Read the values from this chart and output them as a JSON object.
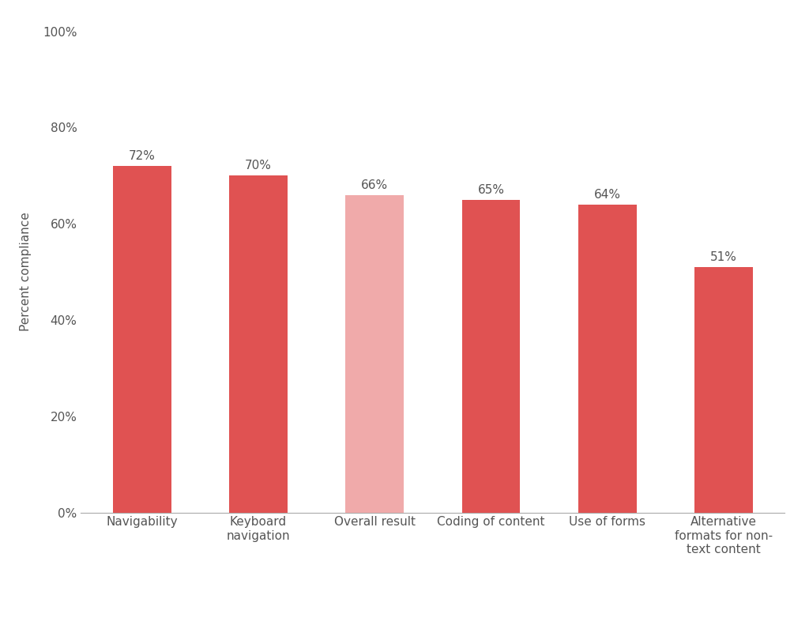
{
  "categories": [
    "Navigability",
    "Keyboard\nnavigation",
    "Overall result",
    "Coding of content",
    "Use of forms",
    "Alternative\nformats for non-\ntext content"
  ],
  "values": [
    72,
    70,
    66,
    65,
    64,
    51
  ],
  "bar_colors": [
    "#E05252",
    "#E05252",
    "#F0AAAA",
    "#E05252",
    "#E05252",
    "#E05252"
  ],
  "value_labels": [
    "72%",
    "70%",
    "66%",
    "65%",
    "64%",
    "51%"
  ],
  "ylabel": "Percent compliance",
  "ylim": [
    0,
    100
  ],
  "yticks": [
    0,
    20,
    40,
    60,
    80,
    100
  ],
  "ytick_labels": [
    "0%",
    "20%",
    "40%",
    "60%",
    "80%",
    "100%"
  ],
  "background_color": "#ffffff",
  "bar_width": 0.5,
  "label_fontsize": 11,
  "tick_fontsize": 11,
  "ylabel_fontsize": 11
}
